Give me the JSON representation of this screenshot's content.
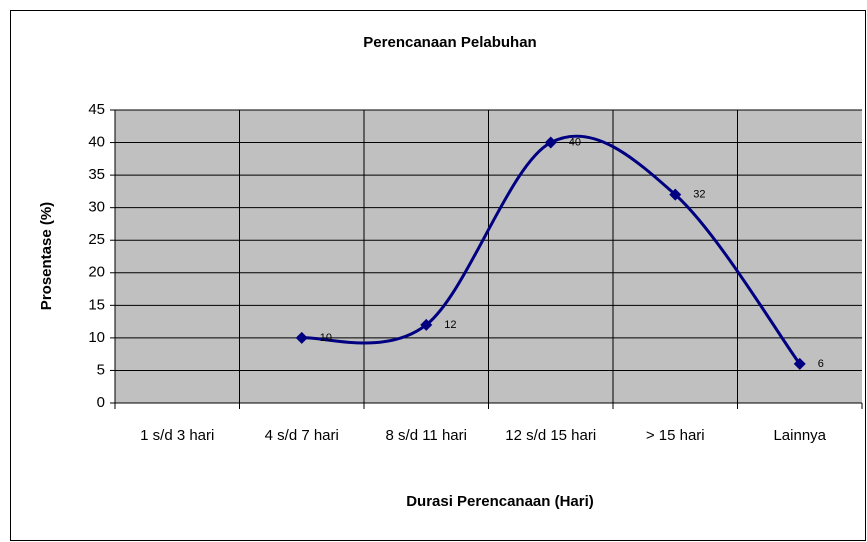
{
  "chart_data": {
    "type": "line",
    "title": "Perencanaan Pelabuhan",
    "x_label": "Durasi Perencanaan (Hari)",
    "y_label": "Prosentase (%)",
    "categories": [
      "1 s/d 3 hari",
      "4 s/d 7 hari",
      "8 s/d 11 hari",
      "12 s/d 15 hari",
      "> 15 hari",
      "Lainnya"
    ],
    "series": [
      {
        "name": "Prosentase",
        "color": "#000080",
        "values": [
          null,
          10,
          12,
          40,
          32,
          6
        ]
      }
    ],
    "ylim": [
      0,
      45
    ],
    "yticks": [
      0,
      5,
      10,
      15,
      20,
      25,
      30,
      35,
      40,
      45
    ],
    "grid": true,
    "smooth": true
  }
}
